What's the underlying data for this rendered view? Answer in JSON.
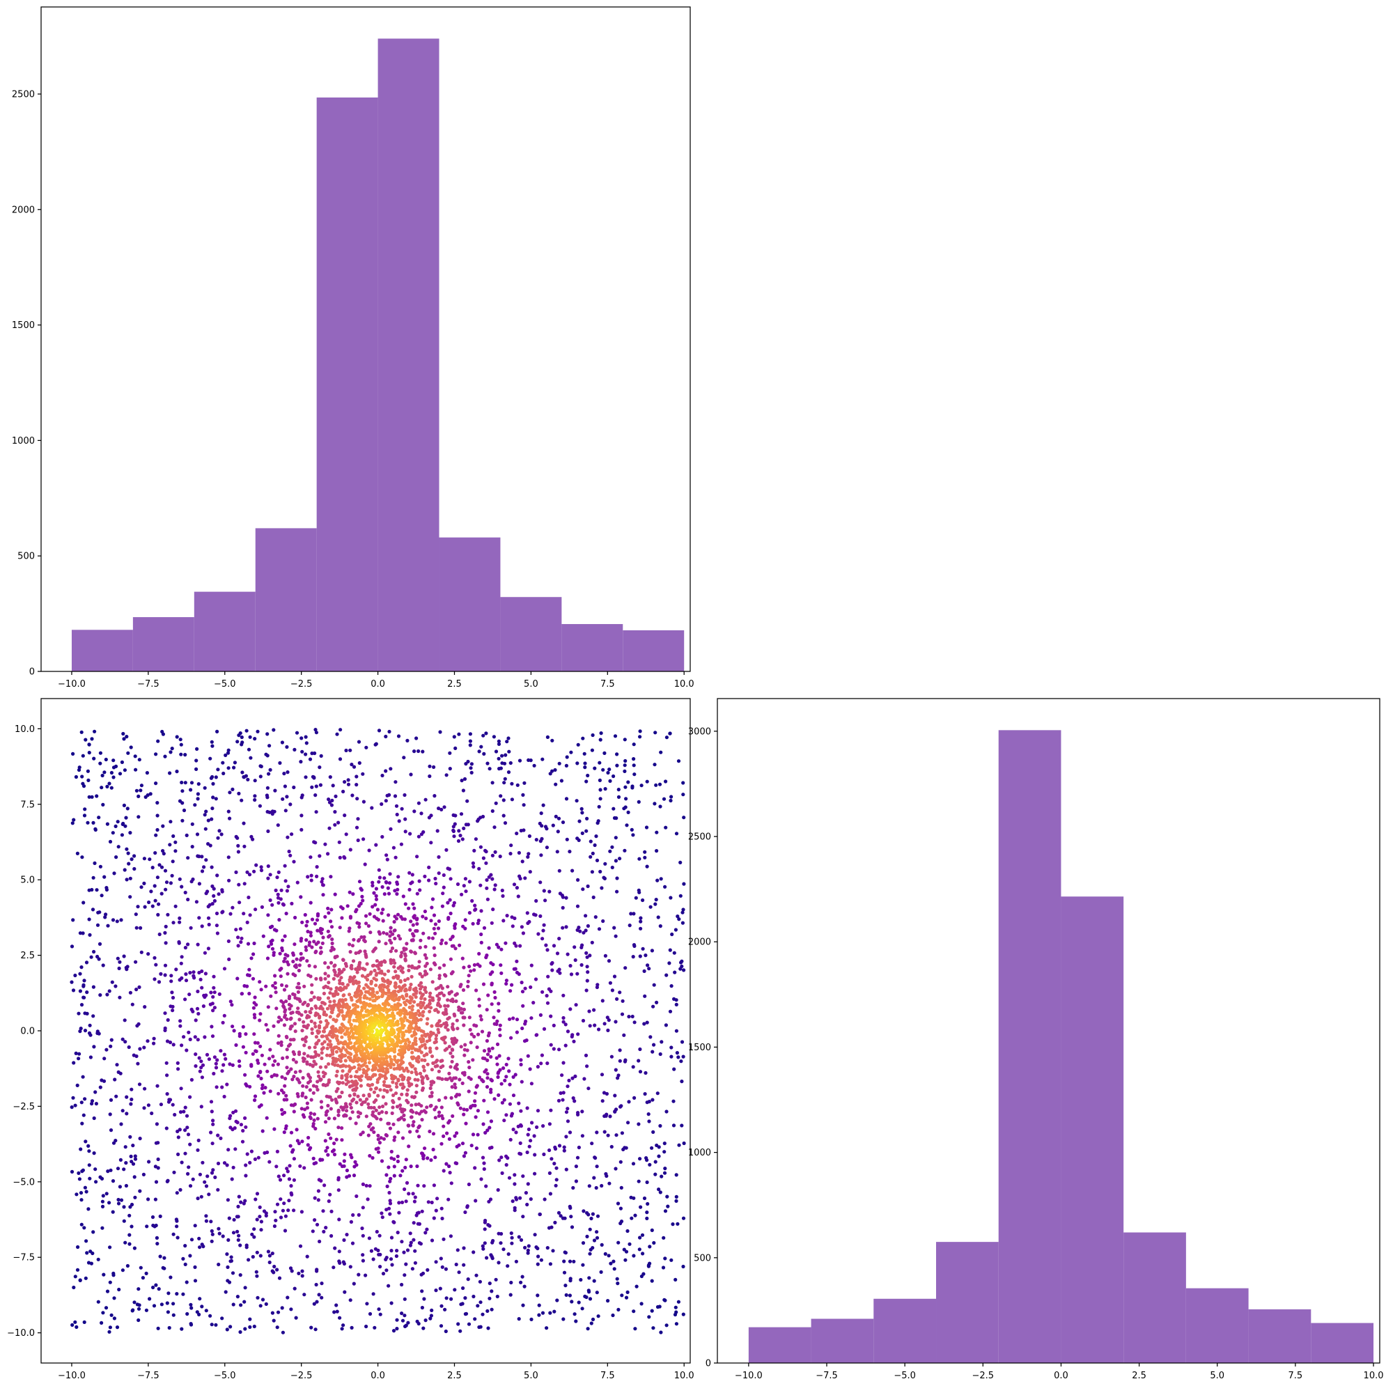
{
  "chart_data": [
    {
      "id": "hist-x",
      "type": "bar",
      "subtype": "histogram",
      "bin_edges": [
        -10,
        -8,
        -6,
        -4,
        -2,
        0,
        2,
        4,
        6,
        8,
        10
      ],
      "values": [
        180,
        235,
        345,
        620,
        2485,
        2740,
        580,
        322,
        205,
        178
      ],
      "color": "#9467bd",
      "xlim": [
        -11,
        10.2
      ],
      "ylim": [
        0,
        2877
      ],
      "xticks": [
        -10.0,
        -7.5,
        -5.0,
        -2.5,
        0.0,
        2.5,
        5.0,
        7.5,
        10.0
      ],
      "xtick_labels": [
        "−10.0",
        "−7.5",
        "−5.0",
        "−2.5",
        "0.0",
        "2.5",
        "5.0",
        "7.5",
        "10.0"
      ],
      "yticks": [
        0,
        500,
        1000,
        1500,
        2000,
        2500
      ],
      "ytick_labels": [
        "0",
        "500",
        "1000",
        "1500",
        "2000",
        "2500"
      ],
      "title": "",
      "xlabel": "",
      "ylabel": ""
    },
    {
      "id": "scatter-xy",
      "type": "scatter",
      "colormap": "plasma",
      "color_meaning": "density (bright yellow at center, dark purple at edges)",
      "center": [
        0,
        0
      ],
      "point_count": 5000,
      "distribution": "mixture of uniform on [-10,10]x[-10,10] and concentrated cluster near origin",
      "xlim": [
        -11,
        10.2
      ],
      "ylim": [
        -11,
        11
      ],
      "xticks": [
        -10.0,
        -7.5,
        -5.0,
        -2.5,
        0.0,
        2.5,
        5.0,
        7.5,
        10.0
      ],
      "xtick_labels": [
        "−10.0",
        "−7.5",
        "−5.0",
        "−2.5",
        "0.0",
        "2.5",
        "5.0",
        "7.5",
        "10.0"
      ],
      "yticks": [
        -10.0,
        -7.5,
        -5.0,
        -2.5,
        0.0,
        2.5,
        5.0,
        7.5,
        10.0
      ],
      "ytick_labels": [
        "−10.0",
        "−7.5",
        "−5.0",
        "−2.5",
        "0.0",
        "2.5",
        "5.0",
        "7.5",
        "10.0"
      ],
      "title": "",
      "xlabel": "",
      "ylabel": ""
    },
    {
      "id": "hist-y",
      "type": "bar",
      "subtype": "histogram",
      "bin_edges": [
        -10,
        -8,
        -6,
        -4,
        -2,
        0,
        2,
        4,
        6,
        8,
        10
      ],
      "values": [
        170,
        210,
        305,
        575,
        3005,
        2215,
        620,
        355,
        255,
        190
      ],
      "color": "#9467bd",
      "xlim": [
        -11,
        10.2
      ],
      "ylim": [
        0,
        3155
      ],
      "xticks": [
        -10.0,
        -7.5,
        -5.0,
        -2.5,
        0.0,
        2.5,
        5.0,
        7.5,
        10.0
      ],
      "xtick_labels": [
        "−10.0",
        "−7.5",
        "−5.0",
        "−2.5",
        "0.0",
        "2.5",
        "5.0",
        "7.5",
        "10.0"
      ],
      "yticks": [
        0,
        500,
        1000,
        1500,
        2000,
        2500,
        3000
      ],
      "ytick_labels": [
        "0",
        "500",
        "1000",
        "1500",
        "2000",
        "2500",
        "3000"
      ],
      "title": "",
      "xlabel": "",
      "ylabel": ""
    }
  ]
}
